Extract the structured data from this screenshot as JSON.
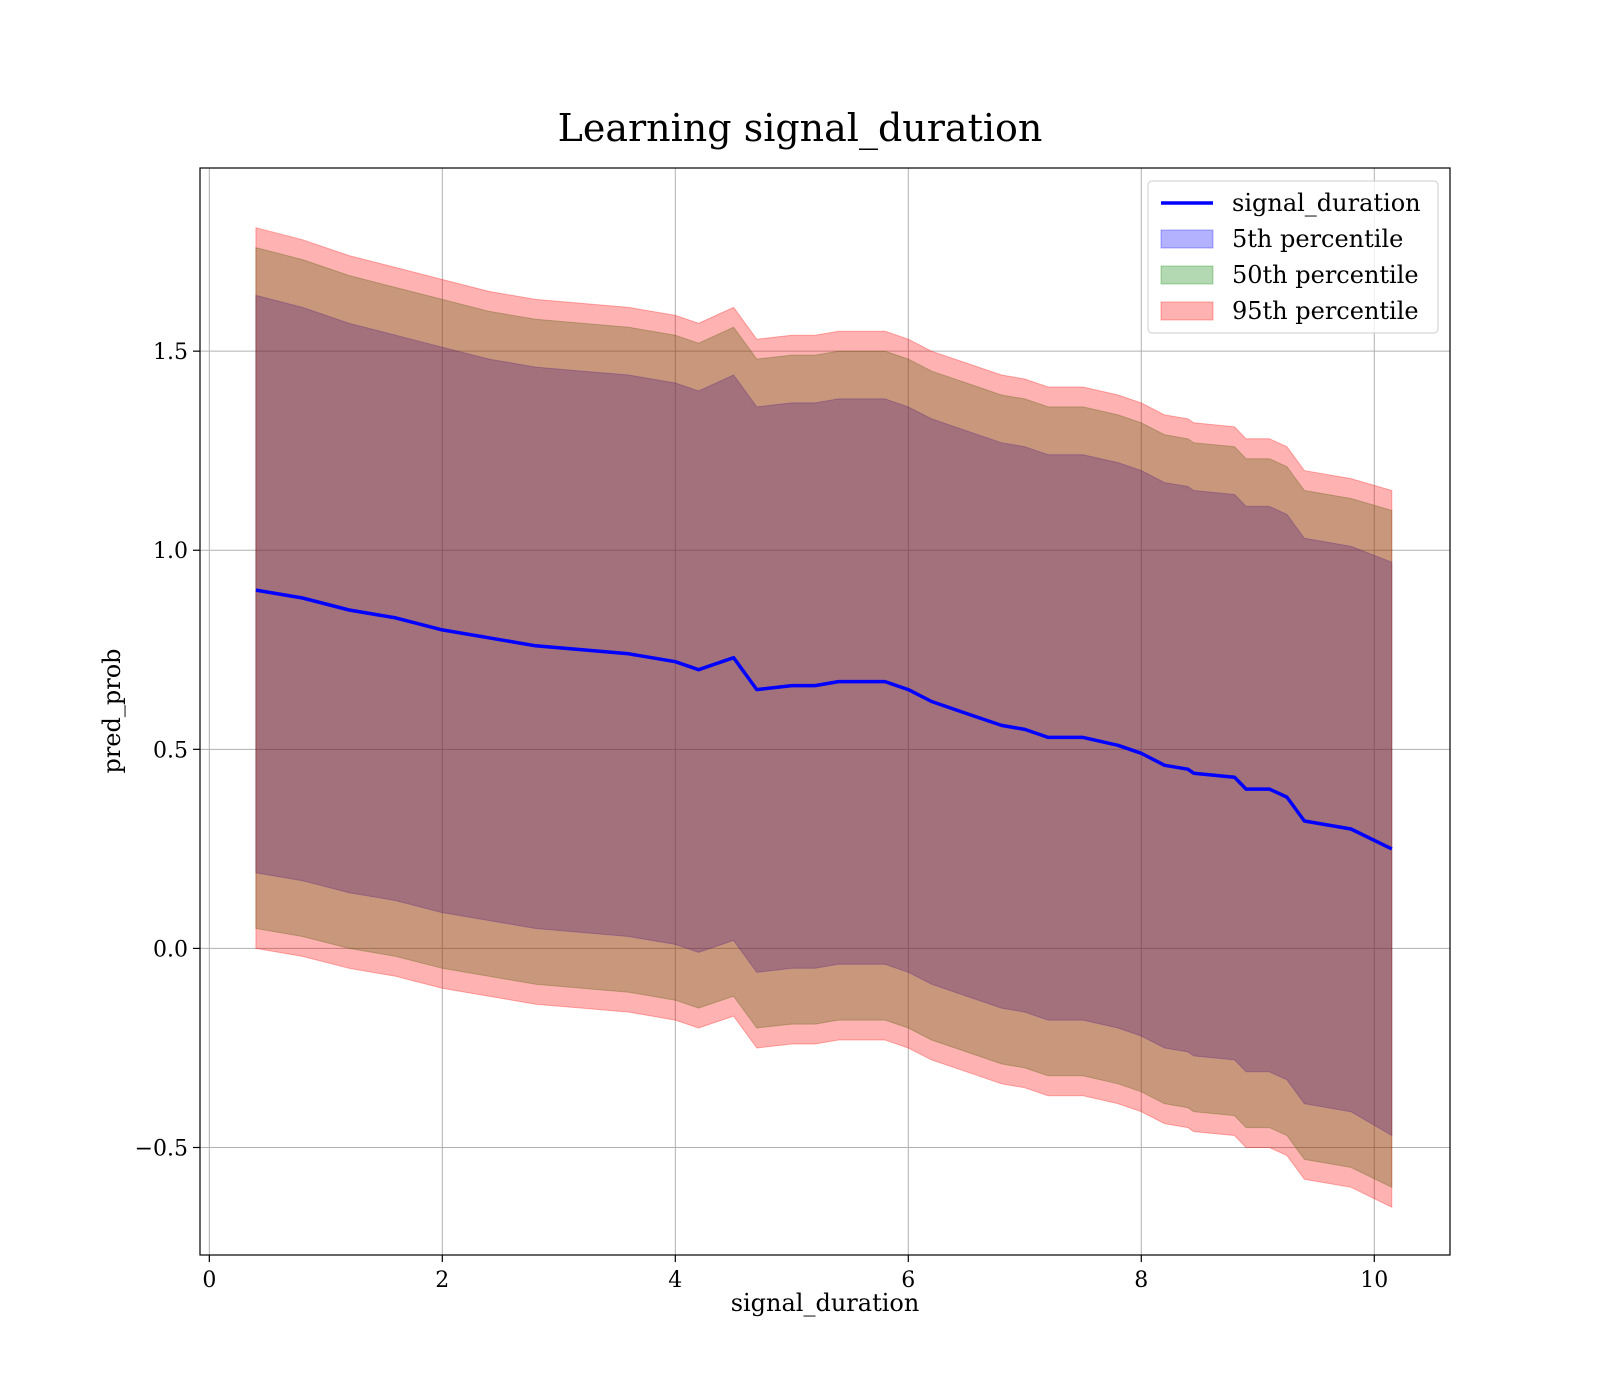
{
  "chart_data": {
    "type": "area",
    "title": "Learning signal_duration",
    "xlabel": "signal_duration",
    "ylabel": "pred_prob",
    "xlim": [
      -0.08,
      10.65
    ],
    "ylim": [
      -0.77,
      1.96
    ],
    "x_ticks": [
      0,
      2,
      4,
      6,
      8,
      10
    ],
    "x_tick_labels": [
      "0",
      "2",
      "4",
      "6",
      "8",
      "10"
    ],
    "y_ticks": [
      -0.5,
      0.0,
      0.5,
      1.0,
      1.5
    ],
    "y_tick_labels": [
      "−0.5",
      "0.0",
      "0.5",
      "1.0",
      "1.5"
    ],
    "grid": true,
    "legend_position": "top-right",
    "x": [
      0.4,
      0.8,
      1.2,
      1.6,
      2.0,
      2.4,
      2.8,
      3.2,
      3.6,
      4.0,
      4.2,
      4.5,
      4.7,
      5.0,
      5.2,
      5.4,
      5.6,
      5.8,
      6.0,
      6.2,
      6.5,
      6.8,
      7.0,
      7.2,
      7.5,
      7.8,
      8.0,
      8.2,
      8.4,
      8.45,
      8.8,
      8.9,
      9.1,
      9.25,
      9.4,
      9.8,
      10.15
    ],
    "series": [
      {
        "name": "signal_duration",
        "kind": "line",
        "color": "#0000ff",
        "values": [
          0.9,
          0.88,
          0.85,
          0.83,
          0.8,
          0.78,
          0.76,
          0.75,
          0.74,
          0.72,
          0.7,
          0.73,
          0.65,
          0.66,
          0.66,
          0.67,
          0.67,
          0.67,
          0.65,
          0.62,
          0.59,
          0.56,
          0.55,
          0.53,
          0.53,
          0.51,
          0.49,
          0.46,
          0.45,
          0.44,
          0.43,
          0.4,
          0.4,
          0.38,
          0.32,
          0.3,
          0.25
        ]
      },
      {
        "name": "5th percentile",
        "kind": "band",
        "color": "#0000ff",
        "lower": [
          0.19,
          0.17,
          0.14,
          0.12,
          0.09,
          0.07,
          0.05,
          0.04,
          0.03,
          0.01,
          -0.01,
          0.02,
          -0.06,
          -0.05,
          -0.05,
          -0.04,
          -0.04,
          -0.04,
          -0.06,
          -0.09,
          -0.12,
          -0.15,
          -0.16,
          -0.18,
          -0.18,
          -0.2,
          -0.22,
          -0.25,
          -0.26,
          -0.27,
          -0.28,
          -0.31,
          -0.31,
          -0.33,
          -0.39,
          -0.41,
          -0.47
        ],
        "upper": [
          1.64,
          1.61,
          1.57,
          1.54,
          1.51,
          1.48,
          1.46,
          1.45,
          1.44,
          1.42,
          1.4,
          1.44,
          1.36,
          1.37,
          1.37,
          1.38,
          1.38,
          1.38,
          1.36,
          1.33,
          1.3,
          1.27,
          1.26,
          1.24,
          1.24,
          1.22,
          1.2,
          1.17,
          1.16,
          1.15,
          1.14,
          1.11,
          1.11,
          1.09,
          1.03,
          1.01,
          0.97
        ]
      },
      {
        "name": "50th percentile",
        "kind": "band",
        "color": "#008000",
        "lower": [
          0.05,
          0.03,
          0.0,
          -0.02,
          -0.05,
          -0.07,
          -0.09,
          -0.1,
          -0.11,
          -0.13,
          -0.15,
          -0.12,
          -0.2,
          -0.19,
          -0.19,
          -0.18,
          -0.18,
          -0.18,
          -0.2,
          -0.23,
          -0.26,
          -0.29,
          -0.3,
          -0.32,
          -0.32,
          -0.34,
          -0.36,
          -0.39,
          -0.4,
          -0.41,
          -0.42,
          -0.45,
          -0.45,
          -0.47,
          -0.53,
          -0.55,
          -0.6
        ],
        "upper": [
          1.76,
          1.73,
          1.69,
          1.66,
          1.63,
          1.6,
          1.58,
          1.57,
          1.56,
          1.54,
          1.52,
          1.56,
          1.48,
          1.49,
          1.49,
          1.5,
          1.5,
          1.5,
          1.48,
          1.45,
          1.42,
          1.39,
          1.38,
          1.36,
          1.36,
          1.34,
          1.32,
          1.29,
          1.28,
          1.27,
          1.26,
          1.23,
          1.23,
          1.21,
          1.15,
          1.13,
          1.1
        ]
      },
      {
        "name": "95th percentile",
        "kind": "band",
        "color": "#ff0000",
        "lower": [
          0.0,
          -0.02,
          -0.05,
          -0.07,
          -0.1,
          -0.12,
          -0.14,
          -0.15,
          -0.16,
          -0.18,
          -0.2,
          -0.17,
          -0.25,
          -0.24,
          -0.24,
          -0.23,
          -0.23,
          -0.23,
          -0.25,
          -0.28,
          -0.31,
          -0.34,
          -0.35,
          -0.37,
          -0.37,
          -0.39,
          -0.41,
          -0.44,
          -0.45,
          -0.46,
          -0.47,
          -0.5,
          -0.5,
          -0.52,
          -0.58,
          -0.6,
          -0.65
        ],
        "upper": [
          1.81,
          1.78,
          1.74,
          1.71,
          1.68,
          1.65,
          1.63,
          1.62,
          1.61,
          1.59,
          1.57,
          1.61,
          1.53,
          1.54,
          1.54,
          1.55,
          1.55,
          1.55,
          1.53,
          1.5,
          1.47,
          1.44,
          1.43,
          1.41,
          1.41,
          1.39,
          1.37,
          1.34,
          1.33,
          1.32,
          1.31,
          1.28,
          1.28,
          1.26,
          1.2,
          1.18,
          1.15
        ]
      }
    ]
  }
}
